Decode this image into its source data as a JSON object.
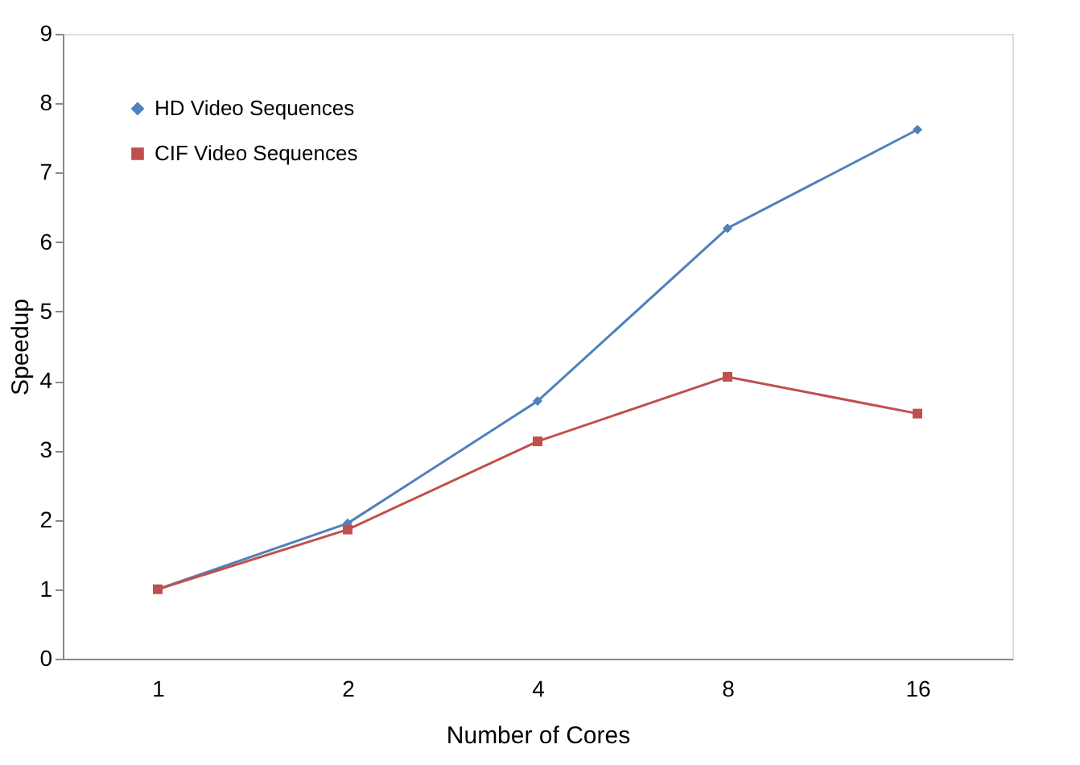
{
  "chart_data": {
    "type": "line",
    "xlabel": "Number of Cores",
    "ylabel": "Speedup",
    "categories": [
      "1",
      "2",
      "4",
      "8",
      "16"
    ],
    "series": [
      {
        "name": "HD Video Sequences",
        "color": "#4f81bd",
        "marker": "diamond",
        "values": [
          1,
          1.95,
          3.71,
          6.2,
          7.62
        ]
      },
      {
        "name": "CIF Video Sequences",
        "color": "#c0504d",
        "marker": "square",
        "values": [
          1,
          1.86,
          3.13,
          4.06,
          3.53
        ]
      }
    ],
    "ylim": [
      0,
      9
    ],
    "yticks": [
      0,
      1,
      2,
      3,
      4,
      5,
      6,
      7,
      8,
      9
    ],
    "grid": false,
    "legend": "top left",
    "line_style": "solid"
  }
}
